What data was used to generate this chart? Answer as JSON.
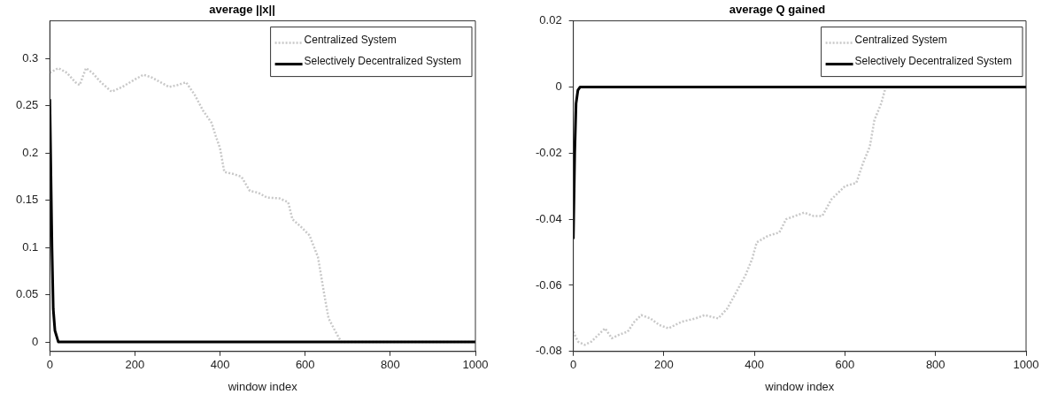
{
  "chart_data": [
    {
      "type": "line",
      "title": "average ||x||",
      "xlabel": "window index",
      "xlim": [
        0,
        1000
      ],
      "xticks": [
        0,
        200,
        400,
        600,
        800,
        1000
      ],
      "ylim": [
        -0.01,
        0.34
      ],
      "yticks": [
        0,
        0.05,
        0.1,
        0.15,
        0.2,
        0.25,
        0.3
      ],
      "grid": false,
      "legend": "top right",
      "marker": "none",
      "series": [
        {
          "name": "Centralized System",
          "color": "#c8c8c8",
          "line_style": "dotted",
          "x": [
            0,
            20,
            40,
            60,
            70,
            85,
            100,
            120,
            145,
            170,
            200,
            220,
            240,
            260,
            280,
            300,
            320,
            340,
            360,
            380,
            390,
            400,
            410,
            430,
            450,
            470,
            490,
            510,
            540,
            560,
            570,
            590,
            610,
            630,
            645,
            655,
            670,
            685,
            1000
          ],
          "values": [
            0.285,
            0.29,
            0.285,
            0.275,
            0.272,
            0.29,
            0.285,
            0.275,
            0.265,
            0.27,
            0.278,
            0.283,
            0.28,
            0.275,
            0.27,
            0.272,
            0.275,
            0.262,
            0.245,
            0.232,
            0.218,
            0.205,
            0.18,
            0.178,
            0.175,
            0.16,
            0.158,
            0.153,
            0.152,
            0.148,
            0.13,
            0.122,
            0.113,
            0.09,
            0.05,
            0.025,
            0.012,
            0,
            0
          ]
        },
        {
          "name": "Selectively Decentralized System",
          "color": "#000000",
          "line_style": "solid",
          "x": [
            0,
            5,
            8,
            12,
            20,
            1000
          ],
          "values": [
            0.257,
            0.1,
            0.035,
            0.012,
            0,
            0
          ]
        }
      ]
    },
    {
      "type": "line",
      "title": "average Q gained",
      "xlabel": "window index",
      "xlim": [
        0,
        1000
      ],
      "xticks": [
        0,
        200,
        400,
        600,
        800,
        1000
      ],
      "ylim": [
        -0.08,
        0.02
      ],
      "yticks": [
        -0.08,
        -0.06,
        -0.04,
        -0.02,
        0,
        0.02
      ],
      "grid": false,
      "legend": "top right",
      "marker": "none",
      "series": [
        {
          "name": "Centralized System",
          "color": "#c8c8c8",
          "line_style": "dotted",
          "x": [
            0,
            10,
            25,
            40,
            55,
            70,
            85,
            100,
            120,
            135,
            150,
            170,
            190,
            210,
            240,
            270,
            290,
            320,
            340,
            360,
            380,
            395,
            405,
            430,
            455,
            470,
            490,
            510,
            530,
            550,
            570,
            600,
            625,
            640,
            655,
            665,
            680,
            690,
            1000
          ],
          "values": [
            -0.074,
            -0.077,
            -0.078,
            -0.077,
            -0.075,
            -0.073,
            -0.076,
            -0.075,
            -0.074,
            -0.071,
            -0.069,
            -0.07,
            -0.072,
            -0.073,
            -0.071,
            -0.07,
            -0.069,
            -0.07,
            -0.067,
            -0.062,
            -0.057,
            -0.052,
            -0.047,
            -0.045,
            -0.044,
            -0.04,
            -0.039,
            -0.038,
            -0.039,
            -0.039,
            -0.034,
            -0.03,
            -0.029,
            -0.023,
            -0.018,
            -0.01,
            -0.005,
            0,
            0
          ]
        },
        {
          "name": "Selectively Decentralized System",
          "color": "#000000",
          "line_style": "solid",
          "x": [
            0,
            3,
            6,
            10,
            15,
            1000
          ],
          "values": [
            -0.046,
            -0.02,
            -0.005,
            -0.001,
            0,
            0
          ]
        }
      ]
    }
  ]
}
